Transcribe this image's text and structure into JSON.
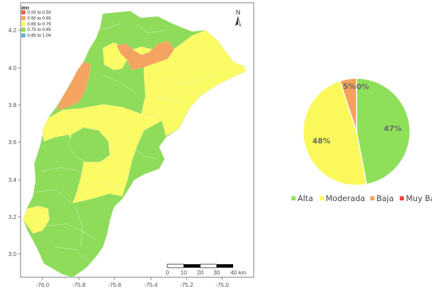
{
  "map": {
    "legend_title": "IRH",
    "legend": [
      {
        "label": "0.00 to 0.50",
        "color": "#e4645a"
      },
      {
        "label": "0.50 to 0.65",
        "color": "#f4a460"
      },
      {
        "label": "0.65 to 0.75",
        "color": "#fbfb66"
      },
      {
        "label": "0.75 to 0.85",
        "color": "#8edc5a"
      },
      {
        "label": "0.85 to 1.00",
        "color": "#5fb3cf"
      }
    ],
    "north_label": "N",
    "x_ticks": [
      "-76.0",
      "-75.8",
      "-75.6",
      "-75.4",
      "-75.2",
      "-75.0"
    ],
    "y_ticks": [
      "4.2",
      "4.0",
      "3.8",
      "3.6",
      "3.4",
      "3.2",
      "3.0"
    ],
    "scale_labels": [
      "0",
      "10",
      "20",
      "30",
      "40 km"
    ]
  },
  "chart_data": {
    "type": "pie",
    "categories": [
      "Alta",
      "Moderada",
      "Baja",
      "Muy Baja"
    ],
    "values": [
      47,
      48,
      5,
      0
    ],
    "labels": [
      "47%",
      "48%",
      "5%",
      "0%"
    ],
    "colors": [
      "#8ee05a",
      "#fbf85c",
      "#f6a25a",
      "#e84a3c"
    ],
    "legend": "bottom"
  }
}
